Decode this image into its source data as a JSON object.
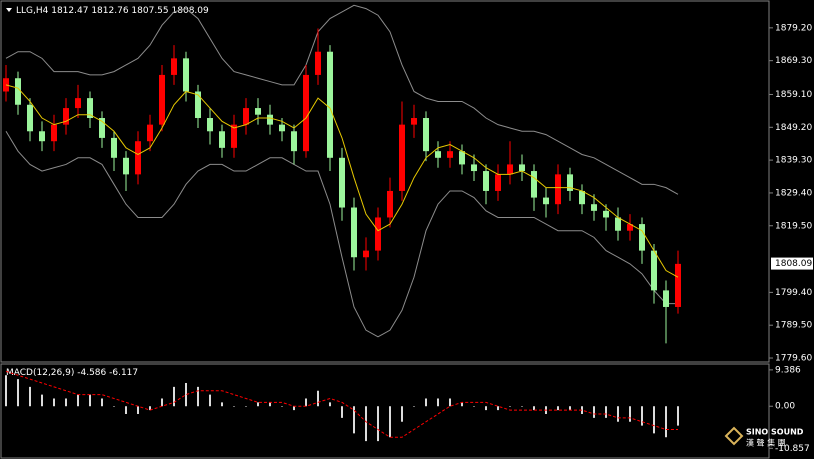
{
  "chart_data": [
    {
      "type": "candlestick",
      "symbol": "LLG,H4",
      "ohlc": [
        1812.47,
        1812.76,
        1807.55,
        1808.09
      ],
      "current_price": {
        "value": 1808.09,
        "label": "1808.09"
      },
      "ylim": [
        1778.4,
        1887.6
      ],
      "yticks": [
        {
          "value": 1879.2,
          "label": "1879.20"
        },
        {
          "value": 1869.3,
          "label": "1869.30"
        },
        {
          "value": 1859.1,
          "label": "1859.10"
        },
        {
          "value": 1849.2,
          "label": "1849.20"
        },
        {
          "value": 1839.3,
          "label": "1839.30"
        },
        {
          "value": 1829.4,
          "label": "1829.40"
        },
        {
          "value": 1819.5,
          "label": "1819.50"
        },
        {
          "value": 1799.4,
          "label": "1799.40"
        },
        {
          "value": 1789.5,
          "label": "1789.50"
        },
        {
          "value": 1779.6,
          "label": "1779.60"
        }
      ],
      "up_color": "#ff0000",
      "down_color": "#9cf59c",
      "ma_color": "#e6c800",
      "band_color": "#8c8c8c",
      "open": [
        1860,
        1864,
        1856,
        1848,
        1845,
        1850,
        1855,
        1858,
        1852,
        1846,
        1840,
        1835,
        1845,
        1850,
        1865,
        1870,
        1860,
        1852,
        1848,
        1843,
        1850,
        1855,
        1853,
        1850,
        1848,
        1842,
        1865,
        1872,
        1840,
        1825,
        1810,
        1812,
        1822,
        1830,
        1850,
        1852,
        1842,
        1840,
        1842,
        1838,
        1836,
        1830,
        1835,
        1838,
        1836,
        1828,
        1826,
        1835,
        1830,
        1826,
        1824,
        1822,
        1818,
        1820,
        1812,
        1800,
        1795
      ],
      "high": [
        1868,
        1866,
        1858,
        1851,
        1853,
        1858,
        1862,
        1860,
        1854,
        1848,
        1842,
        1848,
        1853,
        1868,
        1874,
        1872,
        1862,
        1855,
        1850,
        1853,
        1858,
        1858,
        1856,
        1852,
        1850,
        1868,
        1879,
        1874,
        1843,
        1828,
        1816,
        1825,
        1834,
        1857,
        1856,
        1854,
        1845,
        1845,
        1844,
        1841,
        1838,
        1838,
        1845,
        1841,
        1838,
        1831,
        1838,
        1837,
        1832,
        1829,
        1826,
        1825,
        1823,
        1822,
        1814,
        1803,
        1812
      ],
      "low": [
        1857,
        1853,
        1845,
        1842,
        1842,
        1847,
        1852,
        1849,
        1843,
        1836,
        1830,
        1832,
        1842,
        1848,
        1862,
        1857,
        1849,
        1844,
        1840,
        1840,
        1847,
        1850,
        1847,
        1845,
        1838,
        1840,
        1862,
        1836,
        1821,
        1806,
        1806,
        1809,
        1819,
        1827,
        1846,
        1839,
        1837,
        1837,
        1835,
        1833,
        1826,
        1827,
        1832,
        1833,
        1824,
        1822,
        1823,
        1827,
        1823,
        1821,
        1818,
        1815,
        1815,
        1808,
        1796,
        1784,
        1793
      ],
      "close": [
        1864,
        1856,
        1848,
        1845,
        1850,
        1855,
        1858,
        1852,
        1846,
        1840,
        1835,
        1845,
        1850,
        1865,
        1870,
        1860,
        1852,
        1848,
        1843,
        1850,
        1855,
        1853,
        1850,
        1848,
        1842,
        1865,
        1872,
        1840,
        1825,
        1810,
        1812,
        1822,
        1830,
        1850,
        1852,
        1842,
        1840,
        1842,
        1838,
        1836,
        1830,
        1835,
        1838,
        1836,
        1828,
        1826,
        1835,
        1830,
        1826,
        1824,
        1822,
        1818,
        1820,
        1812,
        1800,
        1795,
        1808
      ],
      "ma": [
        1862,
        1861,
        1857,
        1852,
        1850,
        1851,
        1853,
        1853,
        1851,
        1848,
        1843,
        1841,
        1843,
        1849,
        1856,
        1860,
        1859,
        1855,
        1851,
        1849,
        1850,
        1852,
        1852,
        1851,
        1849,
        1852,
        1858,
        1855,
        1846,
        1834,
        1823,
        1818,
        1820,
        1826,
        1834,
        1840,
        1843,
        1844,
        1842,
        1840,
        1837,
        1835,
        1835,
        1836,
        1834,
        1831,
        1831,
        1831,
        1830,
        1828,
        1825,
        1822,
        1820,
        1818,
        1812,
        1806,
        1804
      ],
      "band_upper": [
        1870,
        1872,
        1872,
        1870,
        1866,
        1866,
        1866,
        1865,
        1865,
        1866,
        1868,
        1870,
        1874,
        1880,
        1884,
        1885,
        1882,
        1876,
        1870,
        1866,
        1865,
        1864,
        1863,
        1862,
        1862,
        1868,
        1878,
        1882,
        1884,
        1886,
        1885,
        1883,
        1878,
        1868,
        1860,
        1858,
        1857,
        1857,
        1857,
        1855,
        1852,
        1850,
        1849,
        1848,
        1848,
        1847,
        1845,
        1843,
        1841,
        1840,
        1838,
        1836,
        1834,
        1832,
        1832,
        1831,
        1829
      ],
      "band_lower": [
        1848,
        1842,
        1838,
        1836,
        1837,
        1838,
        1840,
        1840,
        1838,
        1832,
        1826,
        1822,
        1822,
        1822,
        1826,
        1832,
        1836,
        1838,
        1838,
        1836,
        1836,
        1838,
        1840,
        1840,
        1838,
        1836,
        1836,
        1826,
        1810,
        1795,
        1788,
        1786,
        1788,
        1794,
        1804,
        1818,
        1826,
        1830,
        1830,
        1828,
        1824,
        1822,
        1822,
        1822,
        1822,
        1820,
        1818,
        1818,
        1818,
        1816,
        1812,
        1810,
        1808,
        1805,
        1800,
        1796,
        1796
      ]
    },
    {
      "type": "macd",
      "title": "MACD(12,26,9)",
      "readout": [
        -4.586,
        -6.117
      ],
      "ylim": [
        -13.1,
        10.9
      ],
      "yticks": [
        9.386,
        {
          "value": 0,
          "label": "0.00"
        },
        -10.857
      ],
      "hist_color": "#dcdcdc",
      "signal_color": "#ff0000",
      "histogram": [
        8,
        7,
        5,
        3,
        2,
        2,
        3,
        3,
        2,
        0,
        -2,
        -2,
        -1,
        2,
        5,
        6,
        5,
        3,
        1,
        0,
        0,
        1,
        1,
        0,
        -1,
        2,
        4,
        1,
        -3,
        -7,
        -9,
        -9,
        -8,
        -4,
        0,
        2,
        2,
        2,
        1,
        0,
        -1,
        -1,
        0,
        0,
        -1,
        -2,
        -1,
        -1,
        -2,
        -3,
        -3,
        -4,
        -4,
        -5,
        -7,
        -8,
        -5
      ],
      "signal": [
        9,
        8,
        7,
        6,
        5,
        4,
        3,
        3,
        3,
        2,
        1,
        0,
        -1,
        0,
        1,
        3,
        4,
        4,
        4,
        3,
        2,
        1,
        1,
        1,
        0,
        0,
        1,
        2,
        1,
        -1,
        -4,
        -6,
        -8,
        -8,
        -6,
        -4,
        -2,
        0,
        1,
        1,
        1,
        0,
        -1,
        -1,
        -1,
        -1,
        -1,
        -1,
        -1,
        -2,
        -2,
        -3,
        -3,
        -4,
        -5,
        -6,
        -6
      ]
    }
  ],
  "watermark": {
    "brand": "SINO SOUND",
    "chinese": "漢 聲 集 團"
  }
}
